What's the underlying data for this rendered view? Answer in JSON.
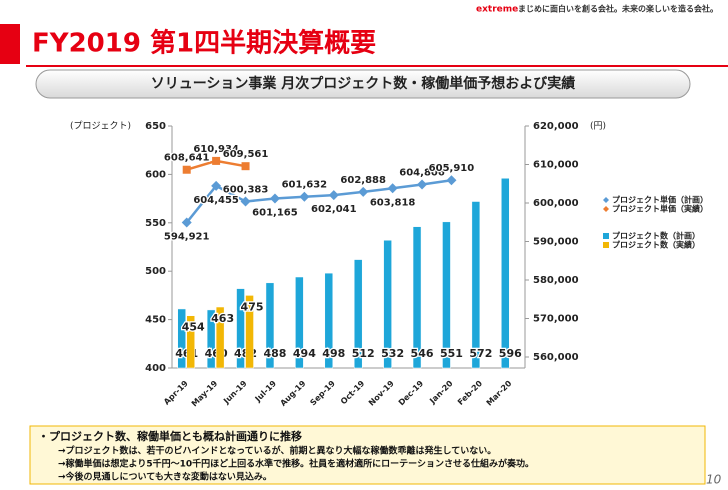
{
  "header": {
    "brand": "extreme",
    "tagline": "まじめに面白いを創る会社。未来の楽しいを造る会社。",
    "title": "FY2019 第1四半期決算概要",
    "subtitle": "ソリューション事業 月次プロジェクト数・稼働単価予想および実績"
  },
  "chart_data": {
    "type": "bar",
    "ylabel": "(プロジェクト)",
    "y2label": "(円)",
    "categories": [
      "Apr-19",
      "May-19",
      "Jun-19",
      "Jul-19",
      "Aug-19",
      "Sep-19",
      "Oct-19",
      "Nov-19",
      "Dec-19",
      "Jan-20",
      "Feb-20",
      "Mar-20"
    ],
    "ylim": [
      400,
      650
    ],
    "yticks": [
      400,
      450,
      500,
      550,
      600,
      650
    ],
    "y2lim": [
      560000,
      620000
    ],
    "y2ticks": [
      {
        "value": 560000,
        "label": "560,000"
      },
      {
        "value": 570000,
        "label": "570,000"
      },
      {
        "value": 580000,
        "label": "580,000"
      },
      {
        "value": 590000,
        "label": "590,000"
      },
      {
        "value": 600000,
        "label": "600,000"
      },
      {
        "value": 610000,
        "label": "610,000"
      },
      {
        "value": 620000,
        "label": "620,000"
      }
    ],
    "legend": "right",
    "series": [
      {
        "name": "プロジェクト単価（計画）",
        "type": "line",
        "axis": "y2",
        "color": "#5b9bd5",
        "values": [
          594921,
          604455,
          600383,
          601165,
          601632,
          602041,
          602888,
          603818,
          604806,
          605910,
          null,
          null
        ],
        "value_labels": [
          "594,921",
          "604,455",
          "600,383",
          "601,165",
          "601,632",
          "602,041",
          "602,888",
          "603,818",
          "604,806",
          "605,910",
          null,
          null
        ]
      },
      {
        "name": "プロジェクト単価（実績）",
        "type": "line",
        "axis": "y2",
        "color": "#ed7d31",
        "values": [
          608641,
          610934,
          609561,
          null,
          null,
          null,
          null,
          null,
          null,
          null,
          null,
          null
        ],
        "value_labels": [
          "608,641",
          "610,934",
          "609,561",
          null,
          null,
          null,
          null,
          null,
          null,
          null,
          null,
          null
        ]
      },
      {
        "name": "プロジェクト数（計画）",
        "type": "bar",
        "color": "#1ea6d9",
        "values": [
          461,
          460,
          482,
          488,
          494,
          498,
          512,
          532,
          546,
          551,
          572,
          596
        ]
      },
      {
        "name": "プロジェクト数（実績）",
        "type": "bar",
        "color": "#f2b705",
        "values": [
          454,
          463,
          475,
          null,
          null,
          null,
          null,
          null,
          null,
          null,
          null,
          null
        ]
      }
    ]
  },
  "notes": [
    "・プロジェクト数、稼働単価とも概ね計画通りに推移",
    "→プロジェクト数は、若干のビハインドとなっているが、前期と異なり大幅な稼働数乖離は発生していない。",
    "→稼働単価は想定より5千円〜10千円ほど上回る水準で推移。社員を適材適所にローテーションさせる仕組みが奏功。",
    "→今後の見通しについても大きな変動はない見込み。"
  ],
  "page_number": "10"
}
